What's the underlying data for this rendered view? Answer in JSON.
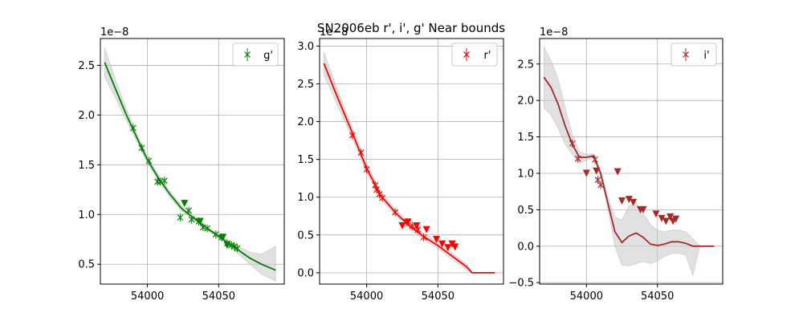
{
  "figure": {
    "title": "SN2006eb  r', i', g' Near bounds"
  },
  "chart_data": [
    {
      "type": "scatter",
      "name": "g-panel",
      "offset_text": "1e−8",
      "color": "#008000",
      "xlim": [
        53967,
        54096
      ],
      "ylim": [
        0.3,
        2.77
      ],
      "xticks": [
        54000,
        54050
      ],
      "yticks": [
        0.5,
        1.0,
        1.5,
        2.0,
        2.5
      ],
      "ytick_labels": [
        "0.5",
        "1.0",
        "1.5",
        "2.0",
        "2.5"
      ],
      "legend": {
        "label": "g'",
        "placement": "top-right"
      },
      "grid": true,
      "detections": [
        {
          "x": 53990,
          "y": 1.87
        },
        {
          "x": 53996,
          "y": 1.67
        },
        {
          "x": 54001,
          "y": 1.54
        },
        {
          "x": 54007,
          "y": 1.33
        },
        {
          "x": 54009,
          "y": 1.33
        },
        {
          "x": 54012,
          "y": 1.34
        },
        {
          "x": 54023,
          "y": 0.97
        },
        {
          "x": 54029,
          "y": 1.04
        },
        {
          "x": 54031,
          "y": 0.95
        },
        {
          "x": 54036,
          "y": 0.93
        },
        {
          "x": 54039,
          "y": 0.87
        },
        {
          "x": 54042,
          "y": 0.86
        },
        {
          "x": 54048,
          "y": 0.8
        },
        {
          "x": 54052,
          "y": 0.77
        },
        {
          "x": 54056,
          "y": 0.71
        },
        {
          "x": 54059,
          "y": 0.69
        },
        {
          "x": 54061,
          "y": 0.68
        },
        {
          "x": 54063,
          "y": 0.66
        }
      ],
      "upper_limits": [
        {
          "x": 54026,
          "y": 1.11
        },
        {
          "x": 54037,
          "y": 0.93
        },
        {
          "x": 54053,
          "y": 0.77
        },
        {
          "x": 54056,
          "y": 0.69
        }
      ],
      "fit_x": [
        53970,
        53978,
        53985,
        53993,
        54000,
        54008,
        54016,
        54024,
        54032,
        54040,
        54048,
        54056,
        54064,
        54072,
        54080,
        54090
      ],
      "fit_y": [
        2.53,
        2.25,
        2.01,
        1.76,
        1.55,
        1.36,
        1.2,
        1.06,
        0.97,
        0.88,
        0.8,
        0.72,
        0.64,
        0.56,
        0.5,
        0.44
      ],
      "band_upper": [
        2.68,
        2.34,
        2.07,
        1.8,
        1.58,
        1.39,
        1.23,
        1.09,
        0.99,
        0.9,
        0.82,
        0.74,
        0.68,
        0.62,
        0.6,
        0.68
      ],
      "band_lower": [
        2.38,
        2.16,
        1.95,
        1.72,
        1.52,
        1.33,
        1.17,
        1.03,
        0.95,
        0.86,
        0.78,
        0.7,
        0.6,
        0.5,
        0.4,
        0.33
      ]
    },
    {
      "type": "scatter",
      "name": "r-panel",
      "offset_text": "1e−8",
      "color": "#ff0000",
      "xlim": [
        53967,
        54096
      ],
      "ylim": [
        -0.15,
        3.1
      ],
      "xticks": [
        54000,
        54050
      ],
      "yticks": [
        0.0,
        0.5,
        1.0,
        1.5,
        2.0,
        2.5,
        3.0
      ],
      "ytick_labels": [
        "0.0",
        "0.5",
        "1.0",
        "1.5",
        "2.0",
        "2.5",
        "3.0"
      ],
      "legend": {
        "label": "r'",
        "placement": "top-right"
      },
      "grid": true,
      "detections": [
        {
          "x": 53990,
          "y": 1.82
        },
        {
          "x": 53996,
          "y": 1.59
        },
        {
          "x": 54000,
          "y": 1.37
        },
        {
          "x": 54006,
          "y": 1.16
        },
        {
          "x": 54007,
          "y": 1.1
        },
        {
          "x": 54009,
          "y": 1.04
        },
        {
          "x": 54011,
          "y": 0.99
        },
        {
          "x": 54020,
          "y": 0.8
        },
        {
          "x": 54028,
          "y": 0.67
        },
        {
          "x": 54032,
          "y": 0.62
        },
        {
          "x": 54036,
          "y": 0.57
        },
        {
          "x": 54040,
          "y": 0.47
        }
      ],
      "upper_limits": [
        {
          "x": 54025,
          "y": 0.62
        },
        {
          "x": 54029,
          "y": 0.67
        },
        {
          "x": 54035,
          "y": 0.62
        },
        {
          "x": 54042,
          "y": 0.57
        },
        {
          "x": 54049,
          "y": 0.44
        },
        {
          "x": 54053,
          "y": 0.38
        },
        {
          "x": 54057,
          "y": 0.33
        },
        {
          "x": 54060,
          "y": 0.38
        },
        {
          "x": 54062,
          "y": 0.34
        }
      ],
      "fit_x": [
        53970,
        53980,
        53990,
        54000,
        54010,
        54020,
        54030,
        54040,
        54050,
        54060,
        54070,
        54074,
        54090
      ],
      "fit_y": [
        2.77,
        2.3,
        1.85,
        1.38,
        1.02,
        0.8,
        0.62,
        0.48,
        0.36,
        0.22,
        0.08,
        0.0,
        0.0
      ],
      "band_upper": [
        2.92,
        2.4,
        1.92,
        1.44,
        1.06,
        0.84,
        0.66,
        0.52,
        0.4,
        0.26,
        0.12,
        0.0,
        0.0
      ],
      "band_lower": [
        2.62,
        2.2,
        1.78,
        1.32,
        0.98,
        0.76,
        0.58,
        0.44,
        0.32,
        0.18,
        0.04,
        0.0,
        0.0
      ]
    },
    {
      "type": "scatter",
      "name": "i-panel",
      "offset_text": "1e−8",
      "color": "#a52a2a",
      "xlim": [
        53967,
        54096
      ],
      "ylim": [
        -0.52,
        2.85
      ],
      "xticks": [
        54000,
        54050
      ],
      "yticks": [
        -0.5,
        0.0,
        0.5,
        1.0,
        1.5,
        2.0,
        2.5
      ],
      "ytick_labels": [
        "−0.5",
        "0.0",
        "0.5",
        "1.0",
        "1.5",
        "2.0",
        "2.5"
      ],
      "legend": {
        "label": "i'",
        "placement": "top-right"
      },
      "grid": true,
      "detections": [
        {
          "x": 53990,
          "y": 1.41
        },
        {
          "x": 53994,
          "y": 1.2
        },
        {
          "x": 54006,
          "y": 1.19
        },
        {
          "x": 54008,
          "y": 0.91
        },
        {
          "x": 54010,
          "y": 0.84
        }
      ],
      "upper_limits": [
        {
          "x": 54000,
          "y": 1.0
        },
        {
          "x": 54007,
          "y": 1.03
        },
        {
          "x": 54022,
          "y": 1.02
        },
        {
          "x": 54025,
          "y": 0.62
        },
        {
          "x": 54030,
          "y": 0.64
        },
        {
          "x": 54033,
          "y": 0.6
        },
        {
          "x": 54038,
          "y": 0.5
        },
        {
          "x": 54040,
          "y": 0.5
        },
        {
          "x": 54049,
          "y": 0.44
        },
        {
          "x": 54053,
          "y": 0.38
        },
        {
          "x": 54056,
          "y": 0.34
        },
        {
          "x": 54059,
          "y": 0.4
        },
        {
          "x": 54061,
          "y": 0.34
        },
        {
          "x": 54063,
          "y": 0.37
        }
      ],
      "fit_x": [
        53970,
        53975,
        53980,
        53985,
        53990,
        53995,
        54000,
        54005,
        54010,
        54015,
        54020,
        54025,
        54030,
        54035,
        54040,
        54045,
        54050,
        54055,
        54060,
        54065,
        54070,
        54075,
        54080,
        54090
      ],
      "fit_y": [
        2.32,
        2.18,
        1.95,
        1.65,
        1.4,
        1.22,
        1.22,
        1.24,
        1.0,
        0.6,
        0.2,
        0.05,
        0.14,
        0.18,
        0.12,
        0.03,
        0.01,
        0.03,
        0.06,
        0.06,
        0.04,
        0.0,
        0.0,
        0.0
      ],
      "band_upper": [
        2.74,
        2.55,
        2.3,
        1.9,
        1.54,
        1.3,
        1.26,
        1.27,
        1.04,
        0.68,
        0.4,
        0.36,
        0.55,
        0.6,
        0.45,
        0.3,
        0.22,
        0.2,
        0.22,
        0.22,
        0.2,
        0.1,
        0.0,
        0.0
      ],
      "band_lower": [
        1.9,
        1.8,
        1.62,
        1.4,
        1.26,
        1.14,
        1.18,
        1.21,
        0.96,
        0.52,
        0.0,
        -0.26,
        -0.27,
        -0.24,
        -0.21,
        -0.24,
        -0.2,
        -0.14,
        -0.1,
        -0.1,
        -0.12,
        -0.4,
        0.0,
        0.0
      ]
    }
  ]
}
